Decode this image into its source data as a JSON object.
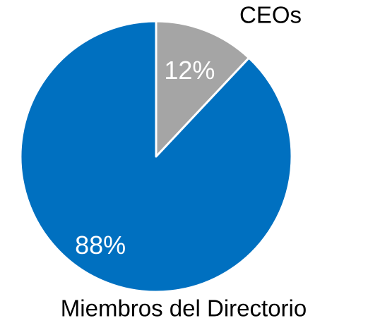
{
  "chart_data": {
    "type": "pie",
    "categories": [
      "CEOs",
      "Miembros del Directorio"
    ],
    "values": [
      12,
      88
    ],
    "value_labels": [
      "12%",
      "88%"
    ],
    "colors": [
      "#a5a5a5",
      "#0070c0"
    ]
  }
}
